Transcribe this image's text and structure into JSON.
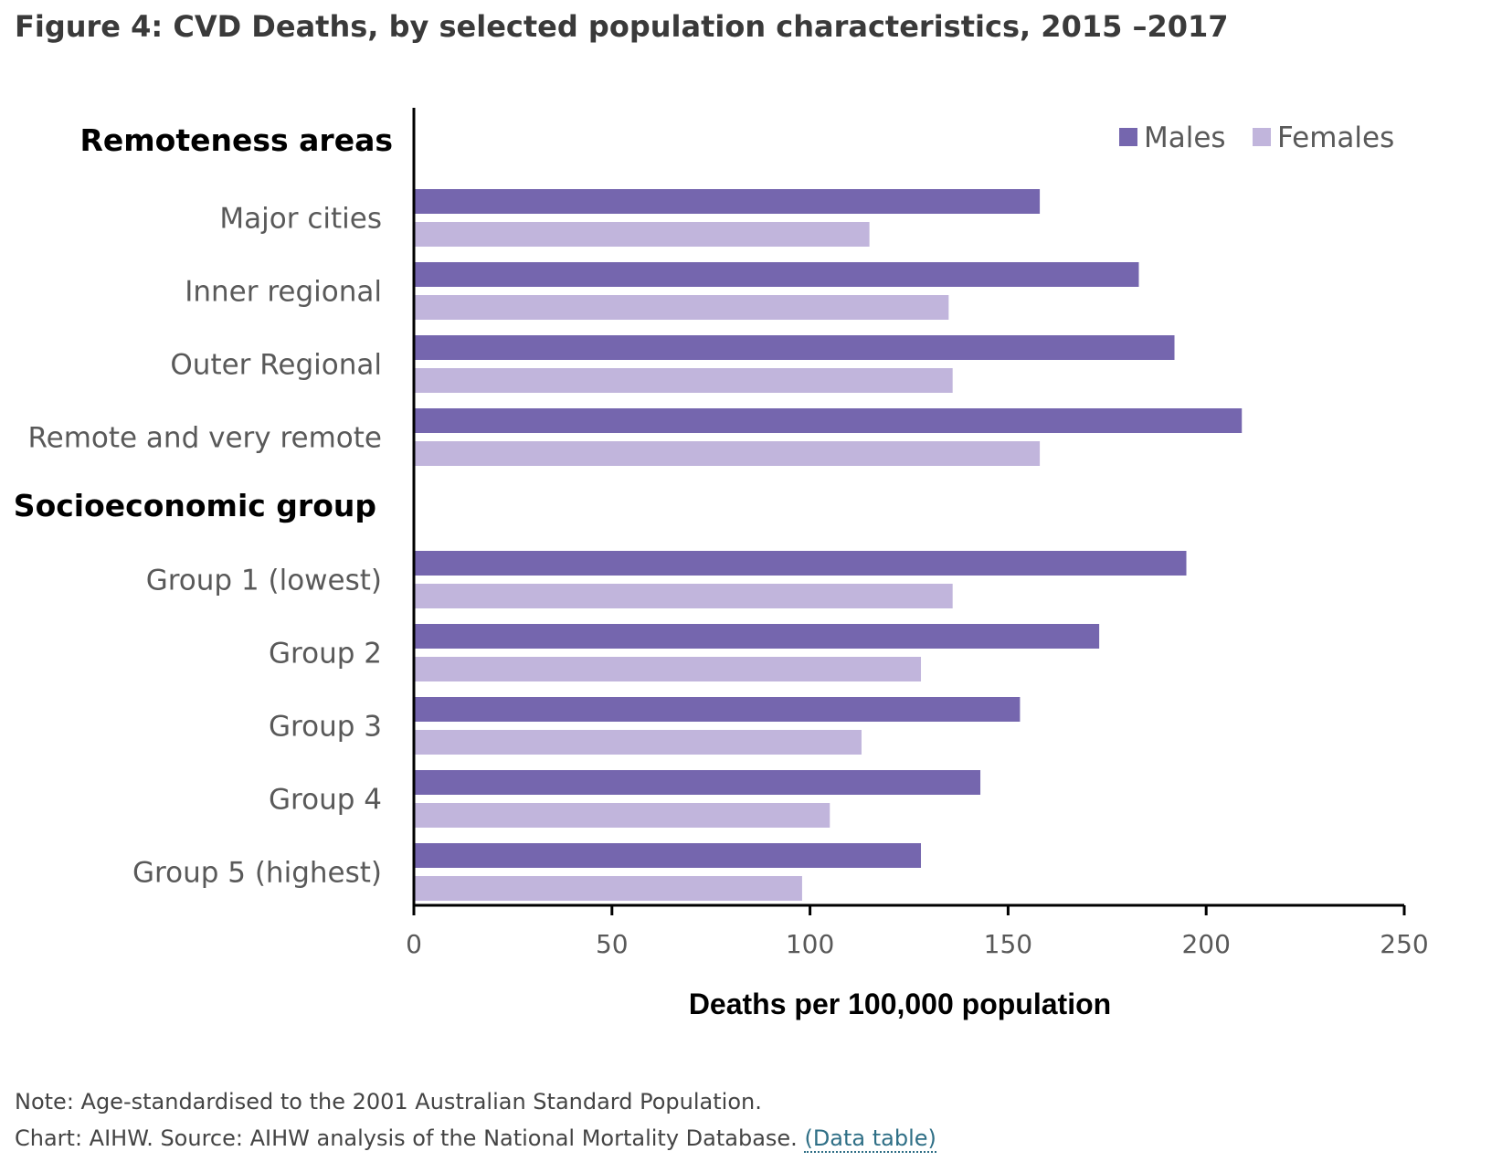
{
  "figure": {
    "title": "Figure 4: CVD Deaths, by selected population characteristics, 2015 –2017"
  },
  "footer": {
    "note": "Note: Age-standardised to the 2001 Australian Standard Population.",
    "source": "Chart: AIHW. Source: AIHW analysis of the National Mortality Database.",
    "data_table_link": "(Data table)"
  },
  "chart_data": {
    "type": "bar",
    "orientation": "horizontal",
    "groups": [
      {
        "heading": "Remoteness areas",
        "categories": [
          "Major cities",
          "Inner regional",
          "Outer Regional",
          "Remote and very remote"
        ]
      },
      {
        "heading": "Socioeconomic group",
        "categories": [
          "Group 1 (lowest)",
          "Group 2",
          "Group 3",
          "Group 4",
          "Group 5 (highest)"
        ]
      }
    ],
    "categories": [
      "Major cities",
      "Inner regional",
      "Outer Regional",
      "Remote and very remote",
      "Group 1 (lowest)",
      "Group 2",
      "Group 3",
      "Group 4",
      "Group 5 (highest)"
    ],
    "series": [
      {
        "name": "Males",
        "color": "#7566ae",
        "values": [
          158,
          183,
          192,
          209,
          195,
          173,
          153,
          143,
          128
        ]
      },
      {
        "name": "Females",
        "color": "#c1b5dc",
        "values": [
          115,
          135,
          136,
          158,
          136,
          128,
          113,
          105,
          98
        ]
      }
    ],
    "xlabel": "Deaths per 100,000 population",
    "ylabel": "",
    "xlim": [
      0,
      250
    ],
    "xticks": [
      0,
      50,
      100,
      150,
      200,
      250
    ],
    "xtick_labels": [
      "0",
      "50",
      "100",
      "150",
      "200",
      "250"
    ],
    "grid": false,
    "legend_position": "top-right"
  }
}
